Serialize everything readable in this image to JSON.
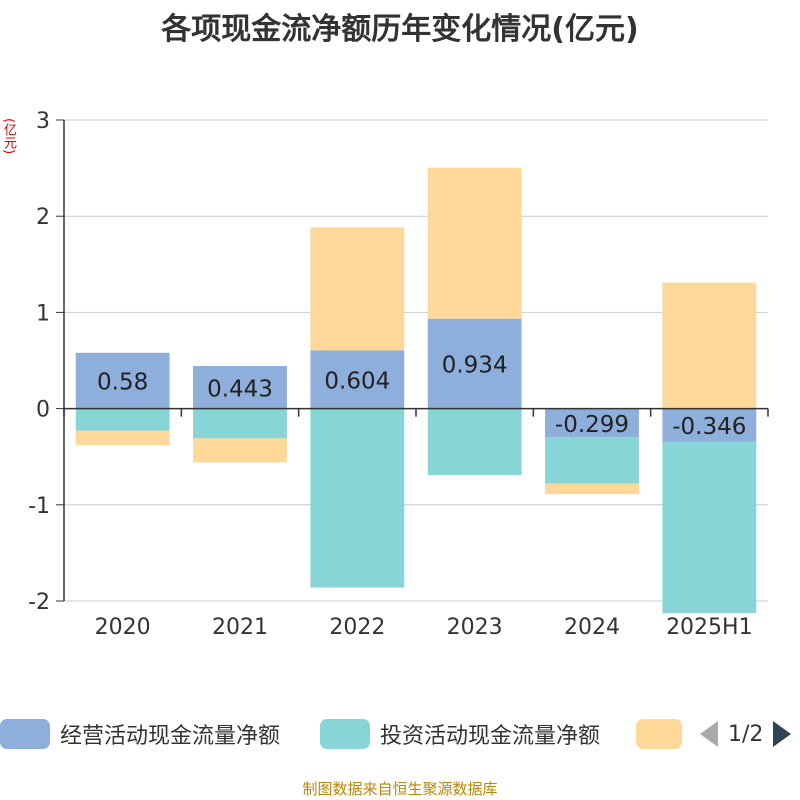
{
  "title": "各项现金流净额历年变化情况(亿元)",
  "unit_label": "(亿元)",
  "source": "制图数据来自恒生聚源数据库",
  "legend": {
    "items": [
      {
        "label": "经营活动现金流量净额",
        "color": "#8eaedc"
      },
      {
        "label": "投资活动现金流量净额",
        "color": "#88d5d8"
      },
      {
        "label": "",
        "color": "#fdd899"
      }
    ],
    "page": "1/2"
  },
  "chart_data": {
    "type": "bar",
    "stacked": true,
    "categories": [
      "2020",
      "2021",
      "2022",
      "2023",
      "2024",
      "2025H1"
    ],
    "series": [
      {
        "name": "经营活动现金流量净额",
        "color": "#8eaedc",
        "values": [
          0.58,
          0.443,
          0.604,
          0.934,
          -0.299,
          -0.346
        ],
        "labels": [
          "0.58",
          "0.443",
          "0.604",
          "0.934",
          "-0.299",
          "-0.346"
        ]
      },
      {
        "name": "投资活动现金流量净额",
        "color": "#88d5d8",
        "values": [
          -0.23,
          -0.31,
          -1.86,
          -0.69,
          -0.48,
          -1.78
        ]
      },
      {
        "name": "",
        "color": "#fdd899",
        "values": [
          -0.15,
          -0.25,
          1.28,
          1.57,
          -0.11,
          1.31
        ]
      }
    ],
    "ylim": [
      -2,
      3
    ],
    "yticks": [
      "3",
      "2",
      "1",
      "0",
      "-1",
      "-2"
    ],
    "grid": true,
    "legend_position": "bottom"
  }
}
